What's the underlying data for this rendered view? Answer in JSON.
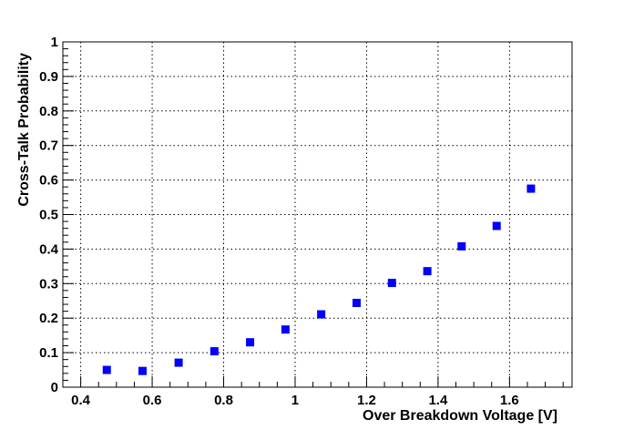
{
  "chart_data": {
    "type": "scatter",
    "xlabel": "Over Breakdown Voltage [V]",
    "ylabel": "Cross-Talk Probability",
    "xlim": [
      0.35,
      1.775
    ],
    "ylim": [
      0,
      1
    ],
    "x_ticks": [
      0.4,
      0.6,
      0.8,
      1.0,
      1.2,
      1.4,
      1.6
    ],
    "x_tick_labels": [
      "0.4",
      "0.6",
      "0.8",
      "1",
      "1.2",
      "1.4",
      "1.6"
    ],
    "y_ticks": [
      0,
      0.1,
      0.2,
      0.3,
      0.4,
      0.5,
      0.6,
      0.7,
      0.8,
      0.9,
      1.0
    ],
    "y_tick_labels": [
      "0",
      "0.1",
      "0.2",
      "0.3",
      "0.4",
      "0.5",
      "0.6",
      "0.7",
      "0.8",
      "0.9",
      "1"
    ],
    "grid": true,
    "marker_color": "#0000ff",
    "series": [
      {
        "x": [
          0.473,
          0.573,
          0.674,
          0.774,
          0.874,
          0.973,
          1.073,
          1.172,
          1.271,
          1.37,
          1.466,
          1.564,
          1.66
        ],
        "y": [
          0.05,
          0.047,
          0.071,
          0.104,
          0.13,
          0.167,
          0.211,
          0.244,
          0.302,
          0.336,
          0.408,
          0.467,
          0.575
        ]
      }
    ]
  }
}
